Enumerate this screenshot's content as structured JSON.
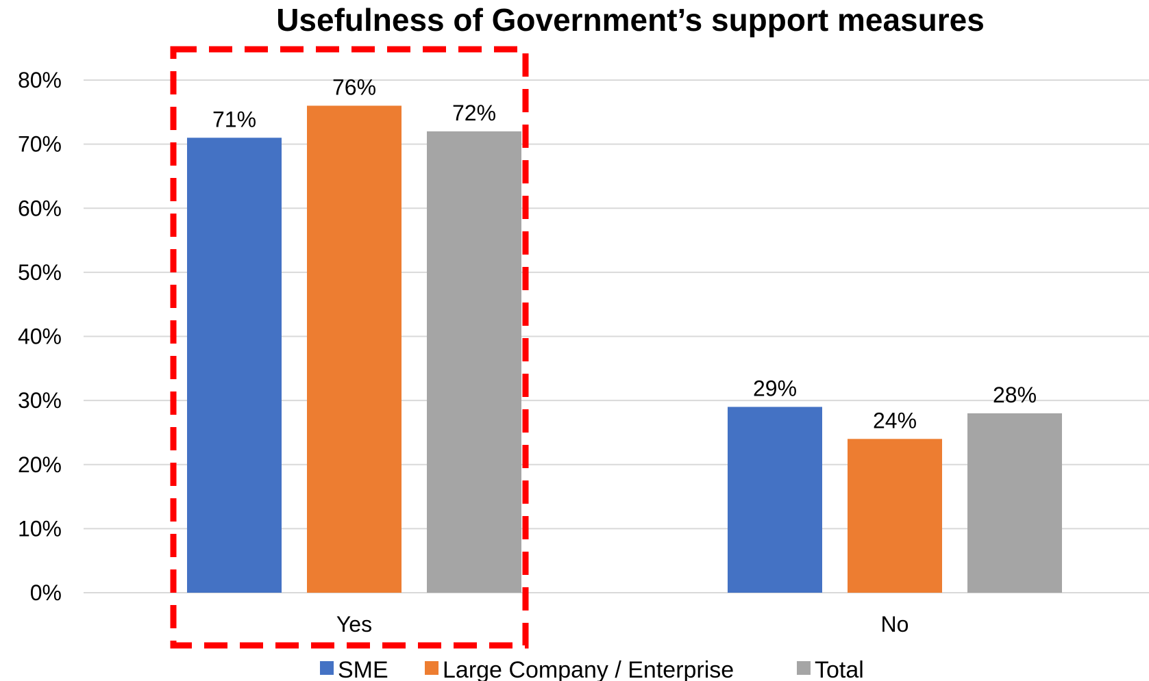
{
  "chart_data": {
    "type": "bar",
    "title": "Usefulness of Government’s support measures",
    "categories": [
      "Yes",
      "No"
    ],
    "series": [
      {
        "name": "SME",
        "values": [
          71,
          29
        ],
        "color": "#4472C4"
      },
      {
        "name": "Large Company / Enterprise",
        "values": [
          76,
          24
        ],
        "color": "#ED7D31"
      },
      {
        "name": "Total",
        "values": [
          72,
          28
        ],
        "color": "#A5A5A5"
      }
    ],
    "ylim": [
      0,
      80
    ],
    "yticks": [
      "0%",
      "10%",
      "20%",
      "30%",
      "40%",
      "50%",
      "60%",
      "70%",
      "80%"
    ],
    "value_suffix": "%",
    "grid": true,
    "legend": "bottom",
    "highlight": {
      "category": "Yes",
      "style": "red dashed box",
      "color": "#FF0000"
    }
  }
}
